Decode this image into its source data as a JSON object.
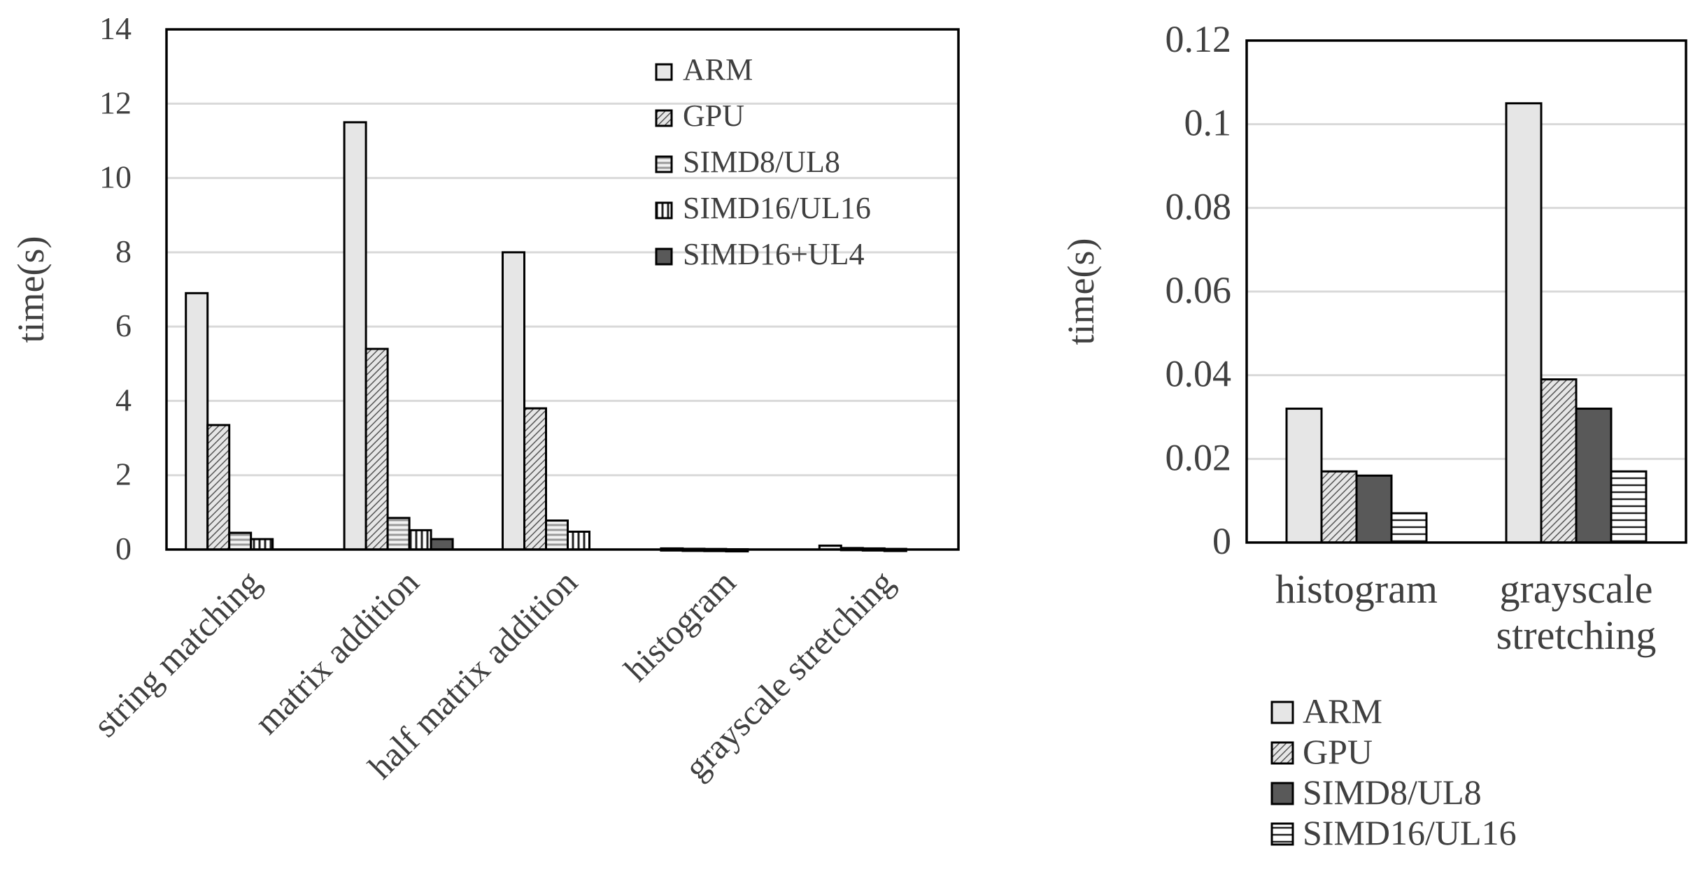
{
  "chart_data": [
    {
      "type": "bar",
      "ylabel": "time(s)",
      "ylim": [
        0,
        14
      ],
      "yticks": [
        "0",
        "2",
        "4",
        "6",
        "8",
        "10",
        "12",
        "14"
      ],
      "categories": [
        "string matching",
        "matrix addition",
        "half matrix addition",
        "histogram",
        "grayscale stretching"
      ],
      "series": [
        {
          "name": "ARM",
          "values": [
            6.9,
            11.5,
            8.0,
            0.03,
            0.105
          ],
          "pattern": "light"
        },
        {
          "name": "GPU",
          "values": [
            3.35,
            5.4,
            3.8,
            0.02,
            0.04
          ],
          "pattern": "hatch"
        },
        {
          "name": "SIMD8/UL8",
          "values": [
            0.45,
            0.85,
            0.78,
            0.015,
            0.03
          ],
          "pattern": "hlines-gray"
        },
        {
          "name": "SIMD16/UL16",
          "values": [
            0.28,
            0.52,
            0.48,
            0.007,
            0.017
          ],
          "pattern": "vlines"
        },
        {
          "name": "SIMD16+UL4",
          "values": [
            0.0,
            0.28,
            0.0,
            0.0,
            0.0
          ],
          "pattern": "dark"
        }
      ],
      "legend": "top-right",
      "grid": true
    },
    {
      "type": "bar",
      "ylabel": "time(s)",
      "ylim": [
        0,
        0.12
      ],
      "yticks": [
        "0",
        "0.02",
        "0.04",
        "0.06",
        "0.08",
        "0.1",
        "0.12"
      ],
      "categories": [
        "histogram",
        "grayscale stretching"
      ],
      "series": [
        {
          "name": "ARM",
          "values": [
            0.032,
            0.105
          ],
          "pattern": "light"
        },
        {
          "name": "GPU",
          "values": [
            0.017,
            0.039
          ],
          "pattern": "hatch"
        },
        {
          "name": "SIMD8/UL8",
          "values": [
            0.016,
            0.032
          ],
          "pattern": "dark"
        },
        {
          "name": "SIMD16/UL16",
          "values": [
            0.007,
            0.017
          ],
          "pattern": "hlines"
        }
      ],
      "legend": "bottom",
      "grid": true
    }
  ]
}
